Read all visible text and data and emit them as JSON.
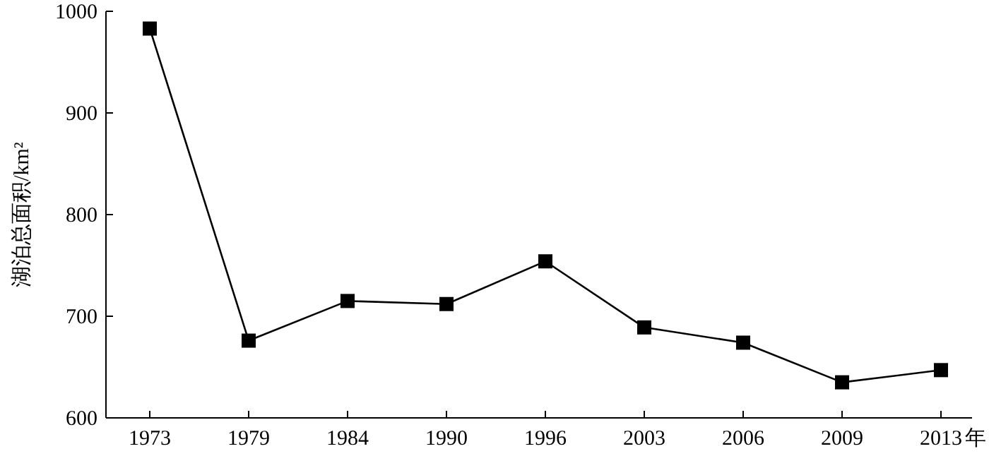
{
  "chart_data": {
    "type": "line",
    "categories": [
      "1973",
      "1979",
      "1984",
      "1990",
      "1996",
      "2003",
      "2006",
      "2009",
      "2013"
    ],
    "values": [
      983,
      676,
      715,
      712,
      754,
      689,
      674,
      635,
      647
    ],
    "color": "#000000",
    "marker": "square",
    "ylim": [
      600,
      1000
    ],
    "yticks": [
      600,
      700,
      800,
      900,
      1000
    ],
    "xlabel": "年",
    "ylabel": "湖泊总面积/km²"
  }
}
